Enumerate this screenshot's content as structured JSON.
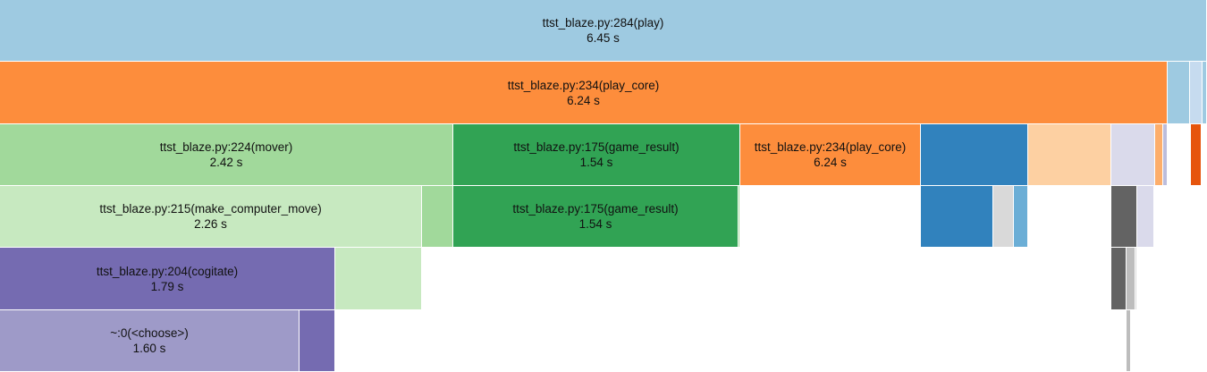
{
  "chart_data": {
    "type": "icicle",
    "total_time_s": 6.45,
    "nodes": [
      {
        "id": "play",
        "name": "ttst_blaze.py:284(play)",
        "time_label": "6.45 s",
        "depth": 0,
        "start": 0.0,
        "width": 1.0,
        "color": "#9ecae1",
        "labeled": true
      },
      {
        "id": "play_core",
        "name": "ttst_blaze.py:234(play_core)",
        "time_label": "6.24 s",
        "depth": 1,
        "start": 0.0,
        "width": 0.9674,
        "color": "#fd8d3c",
        "labeled": true
      },
      {
        "id": "d1-b",
        "depth": 1,
        "start": 0.9674,
        "width": 0.0185,
        "color": "#9ecae1",
        "labeled": false
      },
      {
        "id": "d1-c",
        "depth": 1,
        "start": 0.9859,
        "width": 0.0104,
        "color": "#c6dbef",
        "labeled": false
      },
      {
        "id": "d1-d",
        "depth": 1,
        "start": 0.9963,
        "width": 0.0037,
        "color": "#9ecae1",
        "labeled": false
      },
      {
        "id": "mover",
        "name": "ttst_blaze.py:224(mover)",
        "time_label": "2.42 s",
        "depth": 2,
        "start": 0.0,
        "width": 0.3752,
        "color": "#a1d99b",
        "labeled": true
      },
      {
        "id": "game_result",
        "name": "ttst_blaze.py:175(game_result)",
        "time_label": "1.54 s",
        "depth": 2,
        "start": 0.3752,
        "width": 0.2378,
        "color": "#31a354",
        "labeled": true
      },
      {
        "id": "play_core_rec",
        "name": "ttst_blaze.py:234(play_core)",
        "time_label": "6.24 s",
        "depth": 2,
        "start": 0.613,
        "width": 0.1496,
        "color": "#fd8d3c",
        "labeled": true
      },
      {
        "id": "d2-d",
        "depth": 2,
        "start": 0.7626,
        "width": 0.0889,
        "color": "#3182bd",
        "labeled": false
      },
      {
        "id": "d2-e",
        "depth": 2,
        "start": 0.8515,
        "width": 0.0689,
        "color": "#fdd0a2",
        "labeled": false
      },
      {
        "id": "d2-f",
        "depth": 2,
        "start": 0.9204,
        "width": 0.0367,
        "color": "#dadaeb",
        "labeled": false
      },
      {
        "id": "d2-g",
        "depth": 2,
        "start": 0.9571,
        "width": 0.0067,
        "color": "#fdae6b",
        "labeled": false
      },
      {
        "id": "d2-h",
        "depth": 2,
        "start": 0.9638,
        "width": 0.0037,
        "color": "#bcbddc",
        "labeled": false
      },
      {
        "id": "d2-i",
        "depth": 2,
        "start": 0.9863,
        "width": 0.0089,
        "color": "#e6550d",
        "labeled": false
      },
      {
        "id": "make_computer_move",
        "name": "ttst_blaze.py:215(make_computer_move)",
        "time_label": "2.26 s",
        "depth": 3,
        "start": 0.0,
        "width": 0.35,
        "color": "#c7e9c0",
        "labeled": true
      },
      {
        "id": "d3-b",
        "depth": 3,
        "start": 0.35,
        "width": 0.0252,
        "color": "#a1d99b",
        "labeled": false
      },
      {
        "id": "game_result_2",
        "name": "ttst_blaze.py:175(game_result)",
        "time_label": "1.54 s",
        "depth": 3,
        "start": 0.3752,
        "width": 0.2363,
        "color": "#31a354",
        "labeled": true
      },
      {
        "id": "d3-d",
        "depth": 3,
        "start": 0.6115,
        "width": 0.0015,
        "color": "#a1d99b",
        "labeled": false
      },
      {
        "id": "d3-e",
        "depth": 3,
        "start": 0.7626,
        "width": 0.0607,
        "color": "#3182bd",
        "labeled": false
      },
      {
        "id": "d3-f",
        "depth": 3,
        "start": 0.8233,
        "width": 0.017,
        "color": "#d9d9d9",
        "labeled": false
      },
      {
        "id": "d3-g",
        "depth": 3,
        "start": 0.8403,
        "width": 0.0119,
        "color": "#6baed6",
        "labeled": false
      },
      {
        "id": "d3-h",
        "depth": 3,
        "start": 0.9204,
        "width": 0.0215,
        "color": "#636363",
        "labeled": false
      },
      {
        "id": "d3-i",
        "depth": 3,
        "start": 0.9419,
        "width": 0.0141,
        "color": "#dadaeb",
        "labeled": false
      },
      {
        "id": "cogitate",
        "name": "ttst_blaze.py:204(cogitate)",
        "time_label": "1.79 s",
        "depth": 4,
        "start": 0.0,
        "width": 0.2778,
        "color": "#756bb1",
        "labeled": true
      },
      {
        "id": "d4-b",
        "depth": 4,
        "start": 0.2778,
        "width": 0.0722,
        "color": "#c7e9c0",
        "labeled": false
      },
      {
        "id": "d4-c",
        "depth": 4,
        "start": 0.9204,
        "width": 0.0126,
        "color": "#636363",
        "labeled": false
      },
      {
        "id": "d4-d",
        "depth": 4,
        "start": 0.933,
        "width": 0.0074,
        "color": "#bdbdbd",
        "labeled": false
      },
      {
        "id": "d4-e",
        "depth": 4,
        "start": 0.9404,
        "width": 0.0015,
        "color": "#d9d9d9",
        "labeled": false
      },
      {
        "id": "choose",
        "name": "~:0(<choose>)",
        "time_label": "1.60 s",
        "depth": 5,
        "start": 0.0,
        "width": 0.2481,
        "color": "#9e9ac8",
        "labeled": true
      },
      {
        "id": "d5-b",
        "depth": 5,
        "start": 0.2481,
        "width": 0.0297,
        "color": "#756bb1",
        "labeled": false
      },
      {
        "id": "d5-c",
        "depth": 5,
        "start": 0.933,
        "width": 0.0044,
        "color": "#bdbdbd",
        "labeled": false
      }
    ]
  }
}
